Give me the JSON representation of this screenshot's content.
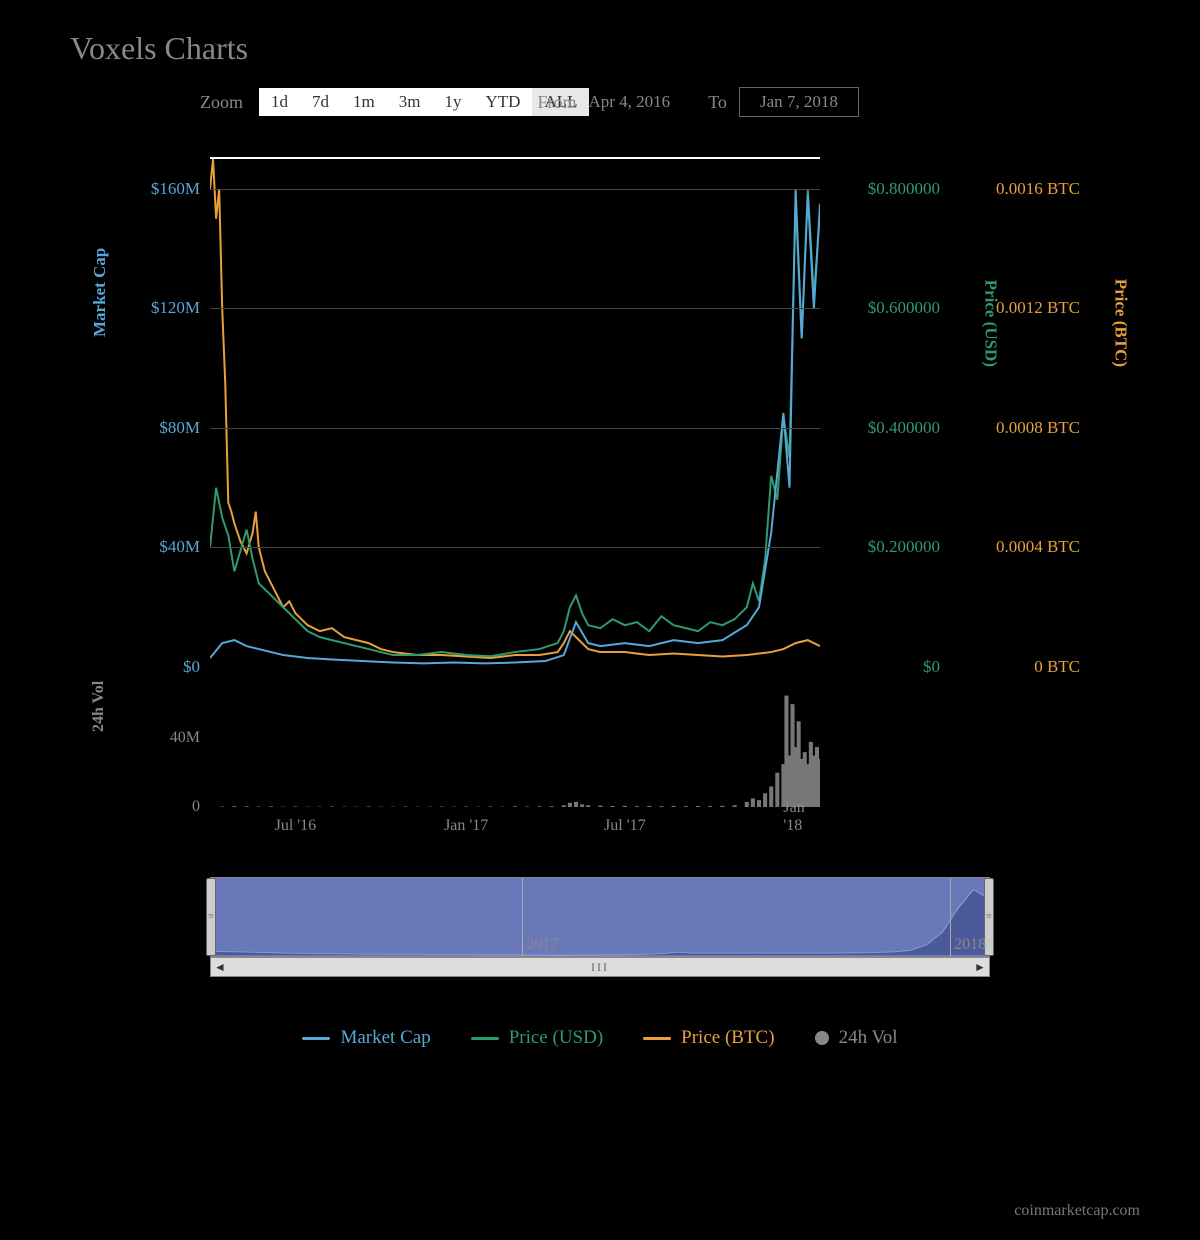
{
  "title": "Voxels Charts",
  "zoom": {
    "label": "Zoom",
    "buttons": [
      "1d",
      "7d",
      "1m",
      "3m",
      "1y",
      "YTD",
      "ALL"
    ],
    "active": "ALL"
  },
  "date_range": {
    "from_label": "From",
    "from": "Apr 4, 2016",
    "to_label": "To",
    "to": "Jan 7, 2018"
  },
  "main_chart": {
    "type": "line",
    "background": "#000000",
    "grid_color": "#444444",
    "axes": {
      "left": {
        "title": "Market Cap",
        "color": "#56a8d6",
        "ticks": [
          {
            "v": 0,
            "label": "$0"
          },
          {
            "v": 40,
            "label": "$40M"
          },
          {
            "v": 80,
            "label": "$80M"
          },
          {
            "v": 120,
            "label": "$120M"
          },
          {
            "v": 160,
            "label": "$160M"
          }
        ],
        "max": 170
      },
      "right1": {
        "title": "Price (USD)",
        "color": "#2e9b6b",
        "ticks": [
          {
            "v": 0,
            "label": "$0"
          },
          {
            "v": 0.2,
            "label": "$0.200000"
          },
          {
            "v": 0.4,
            "label": "$0.400000"
          },
          {
            "v": 0.6,
            "label": "$0.600000"
          },
          {
            "v": 0.8,
            "label": "$0.800000"
          }
        ],
        "max": 0.85
      },
      "right2": {
        "title": "Price (BTC)",
        "color": "#e8a03c",
        "ticks": [
          {
            "v": 0,
            "label": "0 BTC"
          },
          {
            "v": 0.0004,
            "label": "0.0004 BTC"
          },
          {
            "v": 0.0008,
            "label": "0.0008 BTC"
          },
          {
            "v": 0.0012,
            "label": "0.0012 BTC"
          },
          {
            "v": 0.0016,
            "label": "0.0016 BTC"
          }
        ],
        "max": 0.0017
      }
    },
    "line_width": 2,
    "x_range": [
      0,
      100
    ],
    "x_ticks": [
      {
        "x": 14,
        "label": "Jul '16"
      },
      {
        "x": 42,
        "label": "Jan '17"
      },
      {
        "x": 68,
        "label": "Jul '17"
      },
      {
        "x": 96,
        "label": "Jan '18"
      }
    ],
    "series": {
      "marketcap": {
        "color": "#56a8d6",
        "points": [
          [
            0,
            3
          ],
          [
            2,
            8
          ],
          [
            4,
            9
          ],
          [
            6,
            7
          ],
          [
            8,
            6
          ],
          [
            12,
            4
          ],
          [
            16,
            3
          ],
          [
            20,
            2.5
          ],
          [
            25,
            2
          ],
          [
            30,
            1.5
          ],
          [
            35,
            1.2
          ],
          [
            40,
            1.5
          ],
          [
            45,
            1.2
          ],
          [
            50,
            1.5
          ],
          [
            55,
            2
          ],
          [
            58,
            4
          ],
          [
            60,
            15
          ],
          [
            62,
            8
          ],
          [
            64,
            7
          ],
          [
            68,
            8
          ],
          [
            72,
            7
          ],
          [
            76,
            9
          ],
          [
            80,
            8
          ],
          [
            84,
            9
          ],
          [
            88,
            14
          ],
          [
            90,
            20
          ],
          [
            92,
            45
          ],
          [
            94,
            85
          ],
          [
            95,
            60
          ],
          [
            96,
            160
          ],
          [
            97,
            110
          ],
          [
            98,
            158
          ],
          [
            99,
            120
          ],
          [
            100,
            155
          ]
        ]
      },
      "price_usd": {
        "color": "#2e9b6b",
        "points": [
          [
            0,
            0.2
          ],
          [
            1,
            0.3
          ],
          [
            2,
            0.25
          ],
          [
            3,
            0.22
          ],
          [
            4,
            0.16
          ],
          [
            6,
            0.23
          ],
          [
            7,
            0.18
          ],
          [
            8,
            0.14
          ],
          [
            10,
            0.12
          ],
          [
            12,
            0.1
          ],
          [
            14,
            0.08
          ],
          [
            16,
            0.06
          ],
          [
            18,
            0.05
          ],
          [
            22,
            0.04
          ],
          [
            26,
            0.03
          ],
          [
            30,
            0.02
          ],
          [
            34,
            0.02
          ],
          [
            38,
            0.025
          ],
          [
            42,
            0.02
          ],
          [
            46,
            0.018
          ],
          [
            50,
            0.025
          ],
          [
            54,
            0.03
          ],
          [
            57,
            0.04
          ],
          [
            58,
            0.06
          ],
          [
            59,
            0.1
          ],
          [
            60,
            0.12
          ],
          [
            61,
            0.09
          ],
          [
            62,
            0.07
          ],
          [
            64,
            0.065
          ],
          [
            66,
            0.08
          ],
          [
            68,
            0.07
          ],
          [
            70,
            0.075
          ],
          [
            72,
            0.06
          ],
          [
            74,
            0.085
          ],
          [
            76,
            0.07
          ],
          [
            78,
            0.065
          ],
          [
            80,
            0.06
          ],
          [
            82,
            0.075
          ],
          [
            84,
            0.07
          ],
          [
            86,
            0.08
          ],
          [
            88,
            0.1
          ],
          [
            89,
            0.14
          ],
          [
            90,
            0.11
          ],
          [
            91,
            0.18
          ],
          [
            92,
            0.32
          ],
          [
            93,
            0.28
          ],
          [
            94,
            0.42
          ],
          [
            95,
            0.35
          ],
          [
            96,
            0.78
          ],
          [
            97,
            0.55
          ],
          [
            98,
            0.8
          ],
          [
            99,
            0.62
          ],
          [
            100,
            0.76
          ]
        ]
      },
      "price_btc": {
        "color": "#e8a03c",
        "points": [
          [
            0,
            0.0016
          ],
          [
            0.5,
            0.0017
          ],
          [
            1,
            0.0015
          ],
          [
            1.5,
            0.0016
          ],
          [
            2,
            0.0012
          ],
          [
            2.5,
            0.00095
          ],
          [
            3,
            0.00055
          ],
          [
            3.5,
            0.00052
          ],
          [
            4,
            0.00048
          ],
          [
            5,
            0.00042
          ],
          [
            6,
            0.00038
          ],
          [
            7,
            0.00045
          ],
          [
            7.5,
            0.00052
          ],
          [
            8,
            0.0004
          ],
          [
            9,
            0.00032
          ],
          [
            10,
            0.00028
          ],
          [
            11,
            0.00024
          ],
          [
            12,
            0.0002
          ],
          [
            13,
            0.00022
          ],
          [
            14,
            0.00018
          ],
          [
            16,
            0.00014
          ],
          [
            18,
            0.00012
          ],
          [
            20,
            0.00013
          ],
          [
            22,
            0.0001
          ],
          [
            24,
            9e-05
          ],
          [
            26,
            8e-05
          ],
          [
            28,
            6e-05
          ],
          [
            30,
            5e-05
          ],
          [
            34,
            4e-05
          ],
          [
            38,
            4e-05
          ],
          [
            42,
            3.5e-05
          ],
          [
            46,
            3e-05
          ],
          [
            50,
            4e-05
          ],
          [
            54,
            4e-05
          ],
          [
            57,
            5e-05
          ],
          [
            58,
            8e-05
          ],
          [
            59,
            0.00012
          ],
          [
            60,
            0.0001
          ],
          [
            62,
            6e-05
          ],
          [
            64,
            5e-05
          ],
          [
            68,
            5e-05
          ],
          [
            72,
            4e-05
          ],
          [
            76,
            4.5e-05
          ],
          [
            80,
            4e-05
          ],
          [
            84,
            3.5e-05
          ],
          [
            88,
            4e-05
          ],
          [
            90,
            4.5e-05
          ],
          [
            92,
            5e-05
          ],
          [
            94,
            6e-05
          ],
          [
            96,
            8e-05
          ],
          [
            98,
            9e-05
          ],
          [
            100,
            7e-05
          ]
        ]
      }
    }
  },
  "volume_chart": {
    "title": "24h Vol",
    "color": "#888888",
    "bar_color": "#777777",
    "max": 70,
    "ticks": [
      {
        "v": 0,
        "label": "0"
      },
      {
        "v": 40,
        "label": "40M"
      }
    ],
    "bars": [
      [
        2,
        0.3
      ],
      [
        4,
        0.5
      ],
      [
        6,
        0.4
      ],
      [
        8,
        0.3
      ],
      [
        10,
        0.4
      ],
      [
        12,
        0.2
      ],
      [
        14,
        0.3
      ],
      [
        16,
        0.2
      ],
      [
        18,
        0.2
      ],
      [
        20,
        0.3
      ],
      [
        22,
        0.2
      ],
      [
        24,
        0.2
      ],
      [
        26,
        0.3
      ],
      [
        28,
        0.2
      ],
      [
        30,
        0.2
      ],
      [
        32,
        0.3
      ],
      [
        34,
        0.2
      ],
      [
        36,
        0.2
      ],
      [
        38,
        0.3
      ],
      [
        40,
        0.2
      ],
      [
        42,
        0.3
      ],
      [
        44,
        0.2
      ],
      [
        46,
        0.3
      ],
      [
        48,
        0.2
      ],
      [
        50,
        0.4
      ],
      [
        52,
        0.3
      ],
      [
        54,
        0.4
      ],
      [
        56,
        0.5
      ],
      [
        58,
        1.0
      ],
      [
        59,
        2.5
      ],
      [
        60,
        3.0
      ],
      [
        61,
        1.5
      ],
      [
        62,
        1.0
      ],
      [
        64,
        0.8
      ],
      [
        66,
        0.6
      ],
      [
        68,
        0.7
      ],
      [
        70,
        0.5
      ],
      [
        72,
        0.6
      ],
      [
        74,
        0.5
      ],
      [
        76,
        0.6
      ],
      [
        78,
        0.5
      ],
      [
        80,
        0.6
      ],
      [
        82,
        0.5
      ],
      [
        84,
        0.7
      ],
      [
        86,
        1.0
      ],
      [
        88,
        3
      ],
      [
        89,
        5
      ],
      [
        90,
        4
      ],
      [
        91,
        8
      ],
      [
        92,
        12
      ],
      [
        93,
        20
      ],
      [
        94,
        25
      ],
      [
        94.5,
        65
      ],
      [
        95,
        30
      ],
      [
        95.5,
        60
      ],
      [
        96,
        35
      ],
      [
        96.5,
        50
      ],
      [
        97,
        28
      ],
      [
        97.5,
        32
      ],
      [
        98,
        25
      ],
      [
        98.5,
        38
      ],
      [
        99,
        30
      ],
      [
        99.5,
        35
      ],
      [
        100,
        28
      ]
    ]
  },
  "navigator": {
    "years": [
      {
        "x": 40,
        "label": "2017"
      },
      {
        "x": 95,
        "label": "2018"
      }
    ],
    "area_color": "#6878b8",
    "series": [
      [
        0,
        5
      ],
      [
        5,
        4
      ],
      [
        10,
        3
      ],
      [
        15,
        2.5
      ],
      [
        20,
        2
      ],
      [
        25,
        1.8
      ],
      [
        30,
        1.5
      ],
      [
        35,
        1.3
      ],
      [
        40,
        1.2
      ],
      [
        45,
        1.1
      ],
      [
        50,
        1.2
      ],
      [
        55,
        1.5
      ],
      [
        58,
        2.5
      ],
      [
        60,
        4
      ],
      [
        62,
        3
      ],
      [
        65,
        3
      ],
      [
        70,
        3.2
      ],
      [
        75,
        3
      ],
      [
        80,
        3.2
      ],
      [
        85,
        3.5
      ],
      [
        88,
        4.5
      ],
      [
        90,
        6
      ],
      [
        92,
        12
      ],
      [
        94,
        25
      ],
      [
        96,
        50
      ],
      [
        98,
        70
      ],
      [
        100,
        60
      ]
    ],
    "max": 80
  },
  "legend": {
    "items": [
      {
        "label": "Market Cap",
        "color": "#56a8d6",
        "type": "line"
      },
      {
        "label": "Price (USD)",
        "color": "#2e9b6b",
        "type": "line"
      },
      {
        "label": "Price (BTC)",
        "color": "#e8a03c",
        "type": "line"
      },
      {
        "label": "24h Vol",
        "color": "#888888",
        "type": "dot"
      }
    ]
  },
  "attribution": "coinmarketcap.com"
}
